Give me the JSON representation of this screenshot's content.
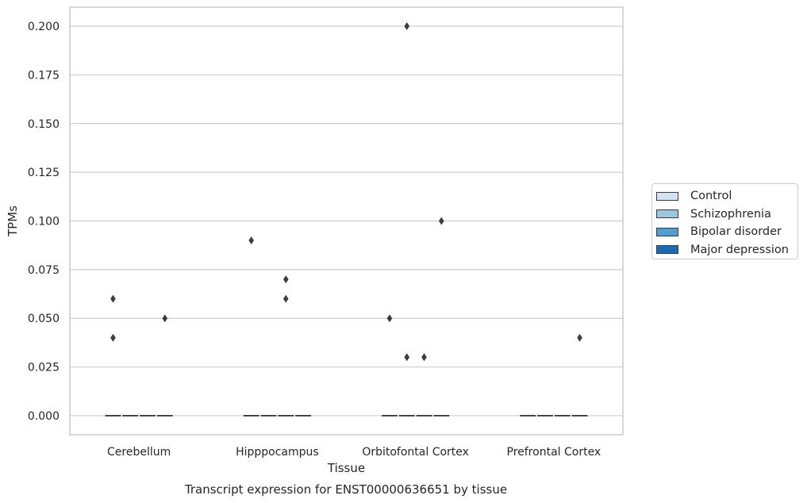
{
  "chart_data": {
    "type": "box",
    "title": "Transcript expression for ENST00000636651 by tissue",
    "xlabel": "Tissue",
    "ylabel": "TPMs",
    "ylim": [
      -0.0098,
      0.2098
    ],
    "yticks": [
      "0.000",
      "0.025",
      "0.050",
      "0.075",
      "0.100",
      "0.125",
      "0.150",
      "0.175",
      "0.200"
    ],
    "ytick_values": [
      0,
      0.025,
      0.05,
      0.075,
      0.1,
      0.125,
      0.15,
      0.175,
      0.2
    ],
    "grid": "horizontal",
    "legend_position": "right",
    "categories": [
      "Cerebellum",
      "Hipppocampus",
      "Orbitofontal Cortex",
      "Prefrontal Cortex"
    ],
    "series": [
      {
        "name": "Control",
        "color": "#d1e2f2",
        "medians": [
          0,
          0,
          0,
          0
        ],
        "outliers": [
          [
            0.04,
            0.06
          ],
          [
            0.09
          ],
          [
            0.05
          ],
          []
        ]
      },
      {
        "name": "Schizophrenia",
        "color": "#9ac8e0",
        "medians": [
          0,
          0,
          0,
          0
        ],
        "outliers": [
          [],
          [],
          [
            0.2,
            0.03
          ],
          []
        ]
      },
      {
        "name": "Bipolar disorder",
        "color": "#529dcc",
        "medians": [
          0,
          0,
          0,
          0
        ],
        "outliers": [
          [],
          [
            0.06,
            0.07
          ],
          [
            0.03
          ],
          []
        ]
      },
      {
        "name": "Major depression",
        "color": "#1c6aaf",
        "medians": [
          0,
          0,
          0,
          0
        ],
        "outliers": [
          [
            0.05
          ],
          [],
          [
            0.1
          ],
          [
            0.04
          ]
        ]
      }
    ]
  }
}
